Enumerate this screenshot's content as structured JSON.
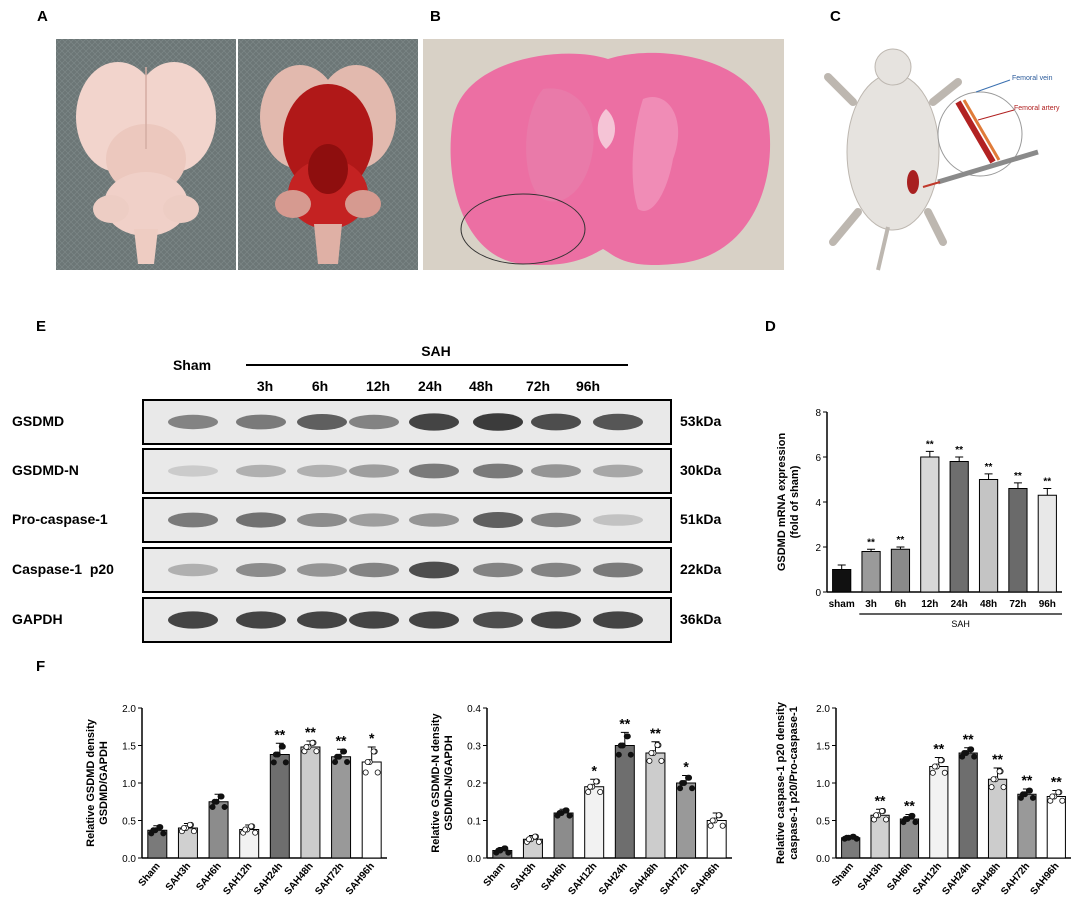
{
  "panels": {
    "A": "A",
    "B": "B",
    "C": "C",
    "D": "D",
    "E": "E",
    "F": "F"
  },
  "panel_c": {
    "vein_label": "Femoral vein",
    "artery_label": "Femoral artery"
  },
  "panel_e": {
    "sham_label": "Sham",
    "group_label": "SAH",
    "lanes": [
      "3h",
      "6h",
      "12h",
      "24h",
      "48h",
      "72h",
      "96h"
    ],
    "rows": [
      {
        "name": "GSDMD",
        "kda": "53kDa",
        "intensity": [
          0.55,
          0.6,
          0.75,
          0.55,
          0.9,
          0.95,
          0.85,
          0.8
        ]
      },
      {
        "name": "GSDMD-N",
        "kda": "30kDa",
        "intensity": [
          0.15,
          0.3,
          0.3,
          0.4,
          0.6,
          0.6,
          0.45,
          0.35
        ]
      },
      {
        "name": "Pro-caspase-1",
        "kda": "51kDa",
        "intensity": [
          0.6,
          0.65,
          0.5,
          0.4,
          0.45,
          0.75,
          0.55,
          0.2
        ]
      },
      {
        "name": "Caspase-1  p20",
        "kda": "22kDa",
        "intensity": [
          0.3,
          0.5,
          0.45,
          0.55,
          0.85,
          0.55,
          0.55,
          0.6
        ]
      },
      {
        "name": "GAPDH",
        "kda": "36kDa",
        "intensity": [
          0.9,
          0.9,
          0.9,
          0.9,
          0.9,
          0.85,
          0.9,
          0.9
        ]
      }
    ]
  },
  "chart_data": [
    {
      "id": "D",
      "type": "bar",
      "ylabel": "GSDMD mRNA expression\n(fold of sham)",
      "xlabel": "SAH",
      "categories": [
        "sham",
        "3h",
        "6h",
        "12h",
        "24h",
        "48h",
        "72h",
        "96h"
      ],
      "values": [
        1.0,
        1.8,
        1.9,
        6.0,
        5.8,
        5.0,
        4.6,
        4.3
      ],
      "errors": [
        0.2,
        0.1,
        0.1,
        0.25,
        0.2,
        0.25,
        0.25,
        0.3
      ],
      "significance": [
        "",
        "**",
        "**",
        "**",
        "**",
        "**",
        "**",
        "**"
      ],
      "bar_colors": [
        "#111111",
        "#9a9a9a",
        "#8a8a8a",
        "#d8d8d8",
        "#6e6e6e",
        "#c4c4c4",
        "#6a6a6a",
        "#e8e8e8"
      ],
      "ylim": [
        0,
        8
      ],
      "yticks": [
        0,
        2,
        4,
        6,
        8
      ]
    },
    {
      "id": "F1",
      "type": "bar",
      "ylabel": "Relative GSDMD density\nGSDMD/GAPDH",
      "categories": [
        "Sham",
        "SAH3h",
        "SAH6h",
        "SAH12h",
        "SAH24h",
        "SAH48h",
        "SAH72h",
        "SAH96h"
      ],
      "values": [
        0.37,
        0.4,
        0.75,
        0.38,
        1.38,
        1.48,
        1.35,
        1.28
      ],
      "errors": [
        0.06,
        0.06,
        0.1,
        0.06,
        0.15,
        0.08,
        0.1,
        0.2
      ],
      "significance": [
        "",
        "",
        "",
        "",
        "**",
        "**",
        "**",
        "*"
      ],
      "bar_colors": [
        "#7a7a7a",
        "#d0d0d0",
        "#8c8c8c",
        "#f2f2f2",
        "#6e6e6e",
        "#cccccc",
        "#999999",
        "#ffffff"
      ],
      "ylim": [
        0,
        2.0
      ],
      "yticks": [
        0.0,
        0.5,
        1.0,
        1.5,
        2.0
      ]
    },
    {
      "id": "F2",
      "type": "bar",
      "ylabel": "Relative GSDMD-N density\nGSDMD-N/GAPDH",
      "categories": [
        "Sham",
        "SAH3h",
        "SAH6h",
        "SAH12h",
        "SAH24h",
        "SAH48h",
        "SAH72h",
        "SAH96h"
      ],
      "values": [
        0.02,
        0.05,
        0.12,
        0.19,
        0.3,
        0.28,
        0.2,
        0.1
      ],
      "errors": [
        0.008,
        0.01,
        0.01,
        0.02,
        0.035,
        0.03,
        0.02,
        0.02
      ],
      "significance": [
        "",
        "",
        "",
        "*",
        "**",
        "**",
        "*",
        ""
      ],
      "bar_colors": [
        "#7a7a7a",
        "#d0d0d0",
        "#8c8c8c",
        "#f2f2f2",
        "#6e6e6e",
        "#cccccc",
        "#999999",
        "#ffffff"
      ],
      "ylim": [
        0,
        0.4
      ],
      "yticks": [
        0.0,
        0.1,
        0.2,
        0.3,
        0.4
      ]
    },
    {
      "id": "F3",
      "type": "bar",
      "ylabel": "Relative caspase-1 p20 density\ncaspase-1 p20/Pro-caspase-1",
      "categories": [
        "Sham",
        "SAH3h",
        "SAH6h",
        "SAH12h",
        "SAH24h",
        "SAH48h",
        "SAH72h",
        "SAH96h"
      ],
      "values": [
        0.27,
        0.57,
        0.52,
        1.22,
        1.4,
        1.05,
        0.85,
        0.82
      ],
      "errors": [
        0.02,
        0.08,
        0.06,
        0.12,
        0.07,
        0.15,
        0.07,
        0.08
      ],
      "significance": [
        "",
        "**",
        "**",
        "**",
        "**",
        "**",
        "**",
        "**"
      ],
      "bar_colors": [
        "#7a7a7a",
        "#d0d0d0",
        "#8c8c8c",
        "#f2f2f2",
        "#6e6e6e",
        "#cccccc",
        "#999999",
        "#ffffff"
      ],
      "ylim": [
        0,
        2.0
      ],
      "yticks": [
        0.0,
        0.5,
        1.0,
        1.5,
        2.0
      ]
    }
  ]
}
